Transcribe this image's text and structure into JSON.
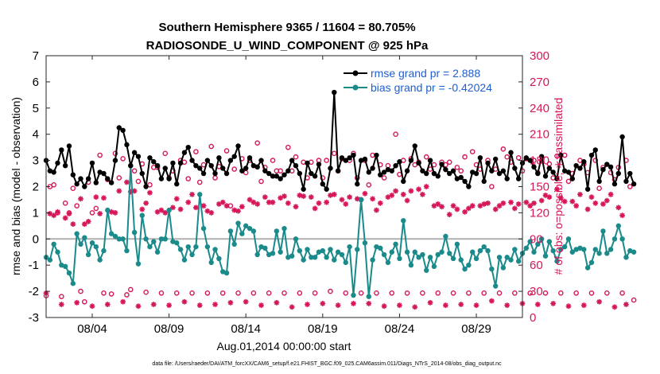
{
  "chart_data": {
    "type": "line",
    "title": "Southern Hemisphere 9365 / 11604 = 80.705%",
    "subtitle": "RADIOSONDE_U_WIND_COMPONENT @ 925 hPa",
    "xlabel": "Aug.01,2014 00:00:00 start",
    "ylabel": "rmse and bias (model - observation)",
    "y2label": "# of obs: o=possible; ∗=assimilated",
    "footer": "data file: /Users/raeder/DAI/ATM_forcXX/CAM6_setup/f.e21.FHIST_BGC.f09_025.CAM6assim.011/Diags_NTrS_2014-08/obs_diag_output.nc",
    "xlim": [
      1,
      32
    ],
    "ylim": [
      -3,
      7
    ],
    "y2lim": [
      0,
      300
    ],
    "xticks": [
      {
        "x": 4,
        "label": "08/04"
      },
      {
        "x": 9,
        "label": "08/09"
      },
      {
        "x": 14,
        "label": "08/14"
      },
      {
        "x": 19,
        "label": "08/19"
      },
      {
        "x": 24,
        "label": "08/24"
      },
      {
        "x": 29,
        "label": "08/29"
      }
    ],
    "yticks": [
      "-3",
      "-2",
      "-1",
      "0",
      "1",
      "2",
      "3",
      "4",
      "5",
      "6",
      "7"
    ],
    "y2ticks": [
      "0",
      "30",
      "60",
      "90",
      "120",
      "150",
      "180",
      "210",
      "240",
      "270",
      "300"
    ],
    "legend": {
      "position": "top-right",
      "entries": [
        "rmse grand pr = 2.888",
        "bias grand pr = -0.42024"
      ]
    },
    "colors": {
      "rmse": "#000000",
      "bias": "#1a8a8a",
      "obs": "#d6165a",
      "legend_text": "#1f5fd0",
      "zero_line": "#b0b0b0"
    },
    "series": [
      {
        "name": "rmse",
        "x_start": 1.0,
        "x_step": 0.25,
        "values": [
          3.0,
          2.6,
          2.55,
          2.9,
          3.4,
          2.8,
          3.55,
          2.45,
          2.1,
          2.3,
          2.0,
          2.3,
          2.9,
          2.15,
          2.55,
          2.5,
          2.3,
          2.15,
          3.0,
          4.25,
          4.15,
          3.6,
          2.8,
          3.3,
          3.15,
          2.5,
          2.0,
          3.1,
          2.95,
          2.8,
          2.3,
          2.7,
          2.3,
          2.9,
          2.1,
          2.9,
          3.3,
          3.5,
          3.0,
          2.8,
          2.7,
          2.5,
          3.0,
          2.8,
          2.5,
          3.1,
          2.7,
          2.5,
          3.0,
          3.15,
          3.55,
          2.6,
          2.7,
          3.1,
          2.8,
          2.75,
          3.0,
          2.6,
          2.5,
          2.4,
          2.4,
          2.3,
          2.45,
          2.6,
          3.0,
          2.8,
          2.5,
          1.9,
          2.9,
          2.5,
          2.4,
          2.85,
          2.1,
          1.9,
          2.7,
          5.6,
          2.6,
          3.1,
          3.0,
          3.1,
          3.2,
          2.1,
          3.0,
          3.05,
          2.55,
          2.7,
          3.2,
          2.45,
          2.55,
          2.65,
          2.6,
          2.8,
          2.95,
          2.2,
          2.6,
          3.0,
          3.55,
          2.9,
          2.6,
          2.5,
          3.0,
          2.5,
          2.4,
          2.85,
          2.65,
          2.5,
          2.6,
          2.3,
          2.35,
          2.2,
          2.0,
          2.55,
          2.5,
          3.1,
          2.2,
          2.9,
          2.6,
          3.05,
          2.5,
          2.6,
          2.3,
          3.3,
          2.7,
          2.3,
          2.9,
          3.1,
          3.0,
          2.75,
          2.5,
          3.15,
          2.4,
          2.7,
          2.55,
          2.3,
          3.2,
          2.6,
          2.55,
          2.3,
          2.8,
          2.7,
          2.95,
          1.9,
          3.2,
          3.4,
          2.2,
          2.65,
          2.85,
          2.75,
          2.1,
          2.5,
          3.9,
          2.2,
          2.5,
          2.1
        ]
      },
      {
        "name": "bias",
        "x_start": 1.0,
        "x_step": 0.25,
        "values": [
          -0.7,
          -0.8,
          -0.2,
          -0.5,
          -1.0,
          -1.05,
          -1.3,
          -1.7,
          0.2,
          -0.2,
          0.05,
          -0.6,
          -0.15,
          -0.3,
          -0.8,
          -0.45,
          1.1,
          0.2,
          0.1,
          0.0,
          0.0,
          -0.45,
          2.8,
          0.25,
          -0.95,
          0.9,
          0.0,
          -0.3,
          -0.1,
          -0.5,
          0.0,
          0.0,
          1.1,
          -0.1,
          -0.15,
          -0.4,
          -0.8,
          -0.3,
          -0.6,
          -0.3,
          1.7,
          0.4,
          -0.3,
          -0.9,
          -0.4,
          -0.75,
          -1.25,
          -1.3,
          0.3,
          -0.2,
          0.6,
          0.2,
          0.5,
          0.4,
          0.3,
          -0.6,
          -0.3,
          -0.35,
          -0.6,
          -0.55,
          0.3,
          -0.5,
          0.4,
          -0.7,
          -0.65,
          0.0,
          -0.45,
          -0.8,
          -0.4,
          -0.7,
          -0.7,
          -0.5,
          -0.45,
          -0.7,
          -0.4,
          -0.8,
          -0.5,
          -0.6,
          -0.9,
          -0.3,
          -2.15,
          -0.4,
          1.5,
          -0.15,
          -2.2,
          -0.8,
          -0.3,
          -0.35,
          -0.6,
          -0.9,
          -0.5,
          -0.2,
          -0.75,
          0.7,
          -0.5,
          -1.0,
          -0.5,
          -0.7,
          -0.6,
          -1.2,
          -0.7,
          -1.05,
          -0.6,
          -0.5,
          0.1,
          -0.55,
          -0.75,
          -0.2,
          -0.8,
          -1.15,
          -1.0,
          -0.5,
          -0.75,
          -0.45,
          -0.3,
          -0.45,
          -1.15,
          -1.8,
          -0.7,
          -1.1,
          -0.7,
          -0.8,
          -0.4,
          -0.85,
          -0.55,
          -0.35,
          -0.1,
          -0.5,
          -0.2,
          0.0,
          -0.65,
          -0.1,
          -0.45,
          -0.85,
          -0.4,
          -0.3,
          0.0,
          -0.5,
          -0.4,
          -0.35,
          -0.4,
          -1.1,
          -0.9,
          -0.4,
          -0.55,
          0.3,
          -0.55,
          -0.4,
          0.0,
          0.5,
          0.0,
          -0.7,
          -0.45,
          -0.5
        ]
      },
      {
        "name": "obs_possible",
        "axis": "right",
        "x_start": 1.0,
        "x_step": 0.25,
        "values": [
          25,
          150,
          152,
          120,
          24,
          131,
          120,
          148,
          128,
          30,
          18,
          155,
          120,
          125,
          186,
          28,
          158,
          27,
          188,
          160,
          182,
          26,
          32,
          168,
          156,
          176,
          29,
          152,
          172,
          172,
          28,
          188,
          160,
          168,
          28,
          180,
          178,
          159,
          28,
          190,
          155,
          175,
          28,
          196,
          160,
          173,
          28,
          191,
          128,
          170,
          28,
          182,
          166,
          180,
          28,
          200,
          156,
          172,
          28,
          180,
          168,
          168,
          28,
          195,
          168,
          184,
          28,
          178,
          160,
          178,
          28,
          180,
          160,
          180,
          30,
          188,
          168,
          182,
          28,
          180,
          188,
          160,
          28,
          180,
          152,
          186,
          28,
          175,
          160,
          174,
          28,
          210,
          164,
          180,
          28,
          182,
          175,
          178,
          28,
          184,
          170,
          175,
          28,
          178,
          175,
          178,
          28,
          172,
          168,
          184,
          28,
          190,
          175,
          170,
          28,
          180,
          150,
          170,
          28,
          193,
          184,
          178,
          28,
          183,
          168,
          182,
          28,
          180,
          166,
          180,
          28,
          176,
          160,
          185,
          28,
          186,
          156,
          165,
          28,
          180,
          176,
          166,
          28,
          180,
          148,
          172,
          28,
          166,
          158,
          172,
          28,
          180,
          150,
          20
        ]
      },
      {
        "name": "obs_assimilated",
        "axis": "right",
        "x_start": 1.0,
        "x_step": 0.25,
        "values": [
          28,
          119,
          117,
          121,
          15,
          114,
          119,
          107,
          17,
          136,
          107,
          110,
          13,
          138,
          119,
          137,
          15,
          121,
          120,
          145,
          18,
          155,
          144,
          145,
          13,
          124,
          131,
          143,
          15,
          121,
          123,
          120,
          14,
          126,
          136,
          124,
          18,
          132,
          141,
          126,
          14,
          128,
          122,
          120,
          15,
          130,
          132,
          128,
          17,
          123,
          122,
          127,
          18,
          135,
          132,
          130,
          14,
          138,
          132,
          132,
          17,
          137,
          139,
          131,
          12,
          127,
          140,
          139,
          15,
          138,
          125,
          131,
          16,
          132,
          140,
          141,
          14,
          135,
          130,
          138,
          16,
          136,
          135,
          142,
          16,
          136,
          123,
          131,
          13,
          138,
          140,
          145,
          14,
          141,
          134,
          145,
          12,
          147,
          141,
          150,
          17,
          128,
          130,
          127,
          14,
          118,
          128,
          124,
          15,
          121,
          125,
          128,
          14,
          128,
          130,
          131,
          19,
          124,
          128,
          131,
          14,
          132,
          125,
          130,
          16,
          132,
          128,
          131,
          15,
          134,
          140,
          138,
          16,
          147,
          137,
          133,
          13,
          133,
          128,
          141,
          14,
          124,
          138,
          131,
          18,
          130,
          134,
          141,
          12,
          126,
          117,
          15
        ]
      }
    ]
  }
}
